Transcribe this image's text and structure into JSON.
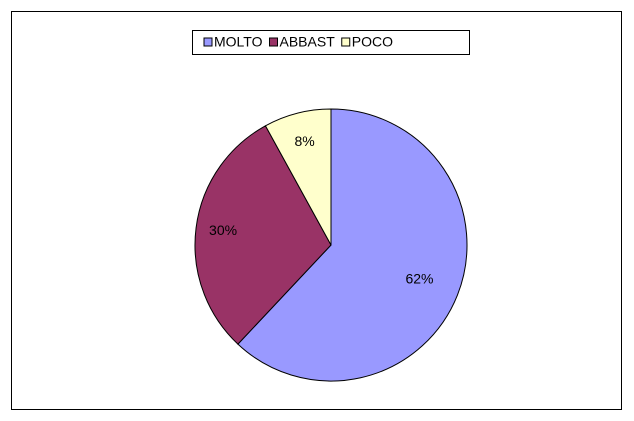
{
  "chart_data": {
    "type": "pie",
    "categories": [
      "MOLTO",
      "ABBAST",
      "POCO"
    ],
    "values": [
      62,
      30,
      8
    ],
    "value_labels": [
      "62%",
      "30%",
      "8%"
    ],
    "colors": [
      "#9999ff",
      "#993366",
      "#ffffcc"
    ],
    "legend": "top"
  }
}
